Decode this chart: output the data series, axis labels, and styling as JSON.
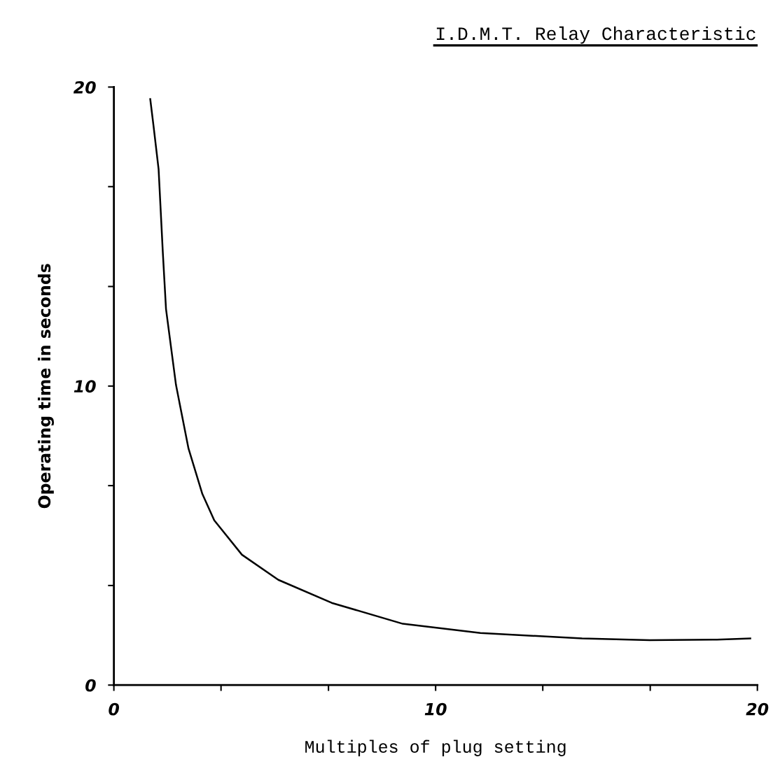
{
  "chart_data": {
    "type": "line",
    "title": "I.D.M.T. Relay Characteristic",
    "xlabel": "Multiples of plug setting",
    "ylabel": "Operating time in seconds",
    "x": [
      1.13,
      1.23,
      1.39,
      1.52,
      1.62,
      1.93,
      2.32,
      2.75,
      3.12,
      3.98,
      5.11,
      6.77,
      8.98,
      11.39,
      14.55,
      16.65,
      18.74,
      19.78
    ],
    "series": [
      {
        "color": "#000000",
        "values": [
          19.6,
          18.72,
          17.25,
          14.49,
          12.58,
          10.04,
          7.91,
          6.39,
          5.51,
          4.36,
          3.52,
          2.75,
          2.05,
          1.74,
          1.56,
          1.5,
          1.52,
          1.56
        ]
      }
    ],
    "xlim": [
      0,
      20
    ],
    "ylim": [
      0,
      20
    ],
    "xticks": [
      0,
      {
        "value": 3.33,
        "label": null
      },
      {
        "value": 6.67,
        "label": null
      },
      10,
      {
        "value": 13.33,
        "label": null
      },
      {
        "value": 16.67,
        "label": null
      },
      20
    ],
    "yticks": [
      0,
      {
        "value": 3.33,
        "label": null
      },
      {
        "value": 6.67,
        "label": null
      },
      10,
      {
        "value": 13.33,
        "label": null
      },
      {
        "value": 16.67,
        "label": null
      },
      20
    ],
    "grid": false,
    "legend": false,
    "marker": "none",
    "line_style": "solid"
  }
}
